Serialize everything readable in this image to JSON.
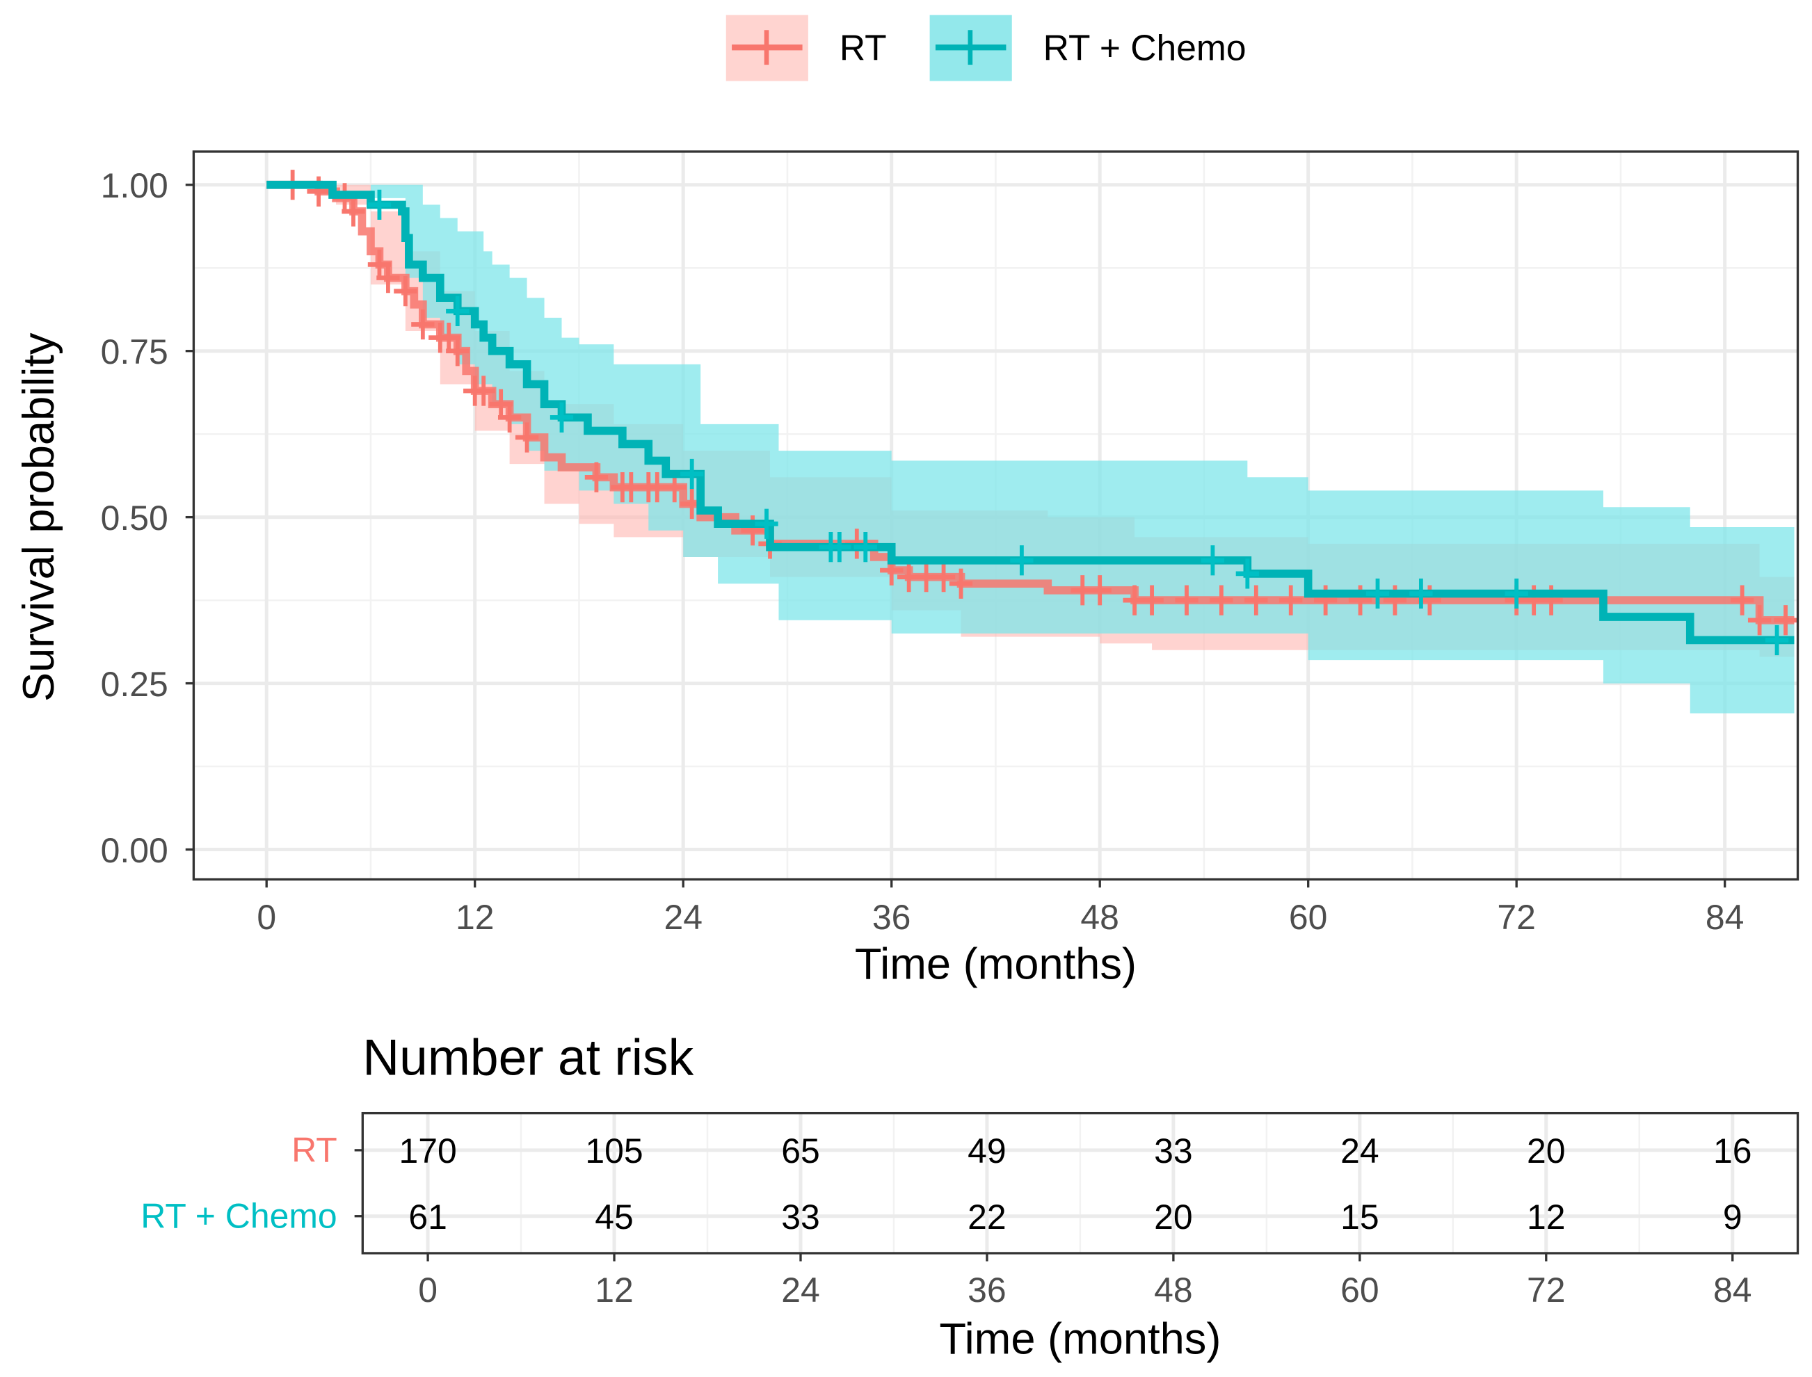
{
  "chart_data": {
    "type": "line",
    "subtype": "kaplan-meier step",
    "xlabel": "Time (months)",
    "ylabel": "Survival probability",
    "xlim": [
      -4.2,
      88.2
    ],
    "ylim": [
      -0.045,
      1.05
    ],
    "xticks": [
      0,
      12,
      24,
      36,
      48,
      60,
      72,
      84
    ],
    "xtick_labels": [
      "0",
      "12",
      "24",
      "36",
      "48",
      "60",
      "72",
      "84"
    ],
    "yticks": [
      0,
      0.25,
      0.5,
      0.75,
      1.0
    ],
    "ytick_labels": [
      "0.00",
      "0.25",
      "0.50",
      "0.75",
      "1.00"
    ],
    "grid": true,
    "legend": {
      "placement": "top",
      "entries": [
        "RT",
        "RT + Chemo"
      ]
    },
    "series": [
      {
        "name": "RT",
        "color": "#F8766D",
        "ci_color": "#FFB6B0",
        "steps": [
          [
            0,
            1.0
          ],
          [
            3,
            0.99
          ],
          [
            4,
            0.98
          ],
          [
            5,
            0.96
          ],
          [
            5.5,
            0.93
          ],
          [
            6,
            0.9
          ],
          [
            6.5,
            0.88
          ],
          [
            7,
            0.86
          ],
          [
            8,
            0.84
          ],
          [
            8.5,
            0.82
          ],
          [
            9,
            0.79
          ],
          [
            10,
            0.77
          ],
          [
            11,
            0.75
          ],
          [
            11.5,
            0.72
          ],
          [
            12,
            0.69
          ],
          [
            13,
            0.67
          ],
          [
            14,
            0.65
          ],
          [
            15,
            0.62
          ],
          [
            16,
            0.59
          ],
          [
            17,
            0.575
          ],
          [
            19,
            0.56
          ],
          [
            20,
            0.545
          ],
          [
            24,
            0.52
          ],
          [
            25,
            0.5
          ],
          [
            27,
            0.48
          ],
          [
            29,
            0.46
          ],
          [
            35,
            0.44
          ],
          [
            36,
            0.42
          ],
          [
            37,
            0.41
          ],
          [
            40,
            0.4
          ],
          [
            45,
            0.39
          ],
          [
            50,
            0.375
          ],
          [
            86,
            0.345
          ]
        ],
        "ci_upper": [
          [
            0,
            1.0
          ],
          [
            4,
            1.0
          ],
          [
            6,
            0.96
          ],
          [
            8,
            0.9
          ],
          [
            10,
            0.84
          ],
          [
            12,
            0.78
          ],
          [
            14,
            0.72
          ],
          [
            16,
            0.67
          ],
          [
            20,
            0.64
          ],
          [
            24,
            0.6
          ],
          [
            29,
            0.56
          ],
          [
            36,
            0.51
          ],
          [
            45,
            0.5
          ],
          [
            50,
            0.47
          ],
          [
            60,
            0.46
          ],
          [
            86,
            0.41
          ]
        ],
        "ci_lower": [
          [
            0,
            1.0
          ],
          [
            4,
            0.97
          ],
          [
            6,
            0.85
          ],
          [
            8,
            0.78
          ],
          [
            10,
            0.7
          ],
          [
            12,
            0.63
          ],
          [
            14,
            0.58
          ],
          [
            16,
            0.52
          ],
          [
            18,
            0.49
          ],
          [
            20,
            0.47
          ],
          [
            24,
            0.44
          ],
          [
            29,
            0.41
          ],
          [
            36,
            0.36
          ],
          [
            40,
            0.32
          ],
          [
            48,
            0.31
          ],
          [
            51,
            0.3
          ],
          [
            86,
            0.29
          ]
        ],
        "censored": [
          1.5,
          3,
          4.5,
          5,
          6.5,
          7,
          8,
          9,
          10,
          10.5,
          11,
          12,
          12.5,
          13.5,
          14,
          15,
          19,
          20.5,
          21,
          22,
          22.5,
          23.5,
          24.5,
          28,
          29,
          34,
          36,
          37,
          38,
          39,
          40,
          47,
          48,
          50,
          51,
          53,
          55,
          57,
          59,
          61,
          63,
          65,
          67,
          72,
          73,
          74,
          85,
          86,
          87.5
        ],
        "end": 88
      },
      {
        "name": "RT + Chemo",
        "color": "#00BFC4",
        "line_color": "#00B3B6",
        "ci_color": "#7FE6E9",
        "steps": [
          [
            0,
            1.0
          ],
          [
            3.8,
            0.985
          ],
          [
            6,
            0.97
          ],
          [
            7.8,
            0.96
          ],
          [
            8,
            0.92
          ],
          [
            8.2,
            0.88
          ],
          [
            9,
            0.86
          ],
          [
            10,
            0.83
          ],
          [
            11,
            0.81
          ],
          [
            12,
            0.79
          ],
          [
            12.5,
            0.77
          ],
          [
            13,
            0.75
          ],
          [
            14,
            0.73
          ],
          [
            15,
            0.7
          ],
          [
            16,
            0.67
          ],
          [
            17,
            0.65
          ],
          [
            18.5,
            0.63
          ],
          [
            20.5,
            0.61
          ],
          [
            22,
            0.585
          ],
          [
            23,
            0.565
          ],
          [
            25,
            0.51
          ],
          [
            26,
            0.49
          ],
          [
            29,
            0.455
          ],
          [
            36,
            0.435
          ],
          [
            56.5,
            0.415
          ],
          [
            60,
            0.385
          ],
          [
            77,
            0.35
          ],
          [
            82,
            0.315
          ]
        ],
        "ci_upper": [
          [
            0,
            1.0
          ],
          [
            8,
            1.0
          ],
          [
            9,
            0.97
          ],
          [
            10,
            0.95
          ],
          [
            11,
            0.93
          ],
          [
            12.5,
            0.9
          ],
          [
            13,
            0.88
          ],
          [
            14,
            0.86
          ],
          [
            15,
            0.83
          ],
          [
            16,
            0.8
          ],
          [
            17,
            0.77
          ],
          [
            18,
            0.76
          ],
          [
            20,
            0.73
          ],
          [
            25,
            0.64
          ],
          [
            29.5,
            0.6
          ],
          [
            36,
            0.585
          ],
          [
            56.5,
            0.56
          ],
          [
            60,
            0.54
          ],
          [
            77,
            0.515
          ],
          [
            82,
            0.485
          ]
        ],
        "ci_lower": [
          [
            0,
            1.0
          ],
          [
            6,
            0.98
          ],
          [
            8,
            0.86
          ],
          [
            9,
            0.8
          ],
          [
            10,
            0.77
          ],
          [
            11,
            0.73
          ],
          [
            12,
            0.7
          ],
          [
            13,
            0.67
          ],
          [
            14,
            0.64
          ],
          [
            15,
            0.6
          ],
          [
            16,
            0.57
          ],
          [
            18,
            0.54
          ],
          [
            20,
            0.52
          ],
          [
            22,
            0.48
          ],
          [
            24,
            0.44
          ],
          [
            26,
            0.4
          ],
          [
            29.5,
            0.345
          ],
          [
            36,
            0.325
          ],
          [
            60,
            0.285
          ],
          [
            77,
            0.25
          ],
          [
            82,
            0.205
          ]
        ],
        "censored": [
          6.5,
          11,
          17,
          24.5,
          28.8,
          32.5,
          33,
          34.5,
          43.5,
          54.5,
          56.5,
          64,
          66.5,
          72,
          87
        ],
        "end": 88
      }
    ],
    "risk_table": {
      "title": "Number at risk",
      "xlabel": "Time (months)",
      "times": [
        0,
        12,
        24,
        36,
        48,
        60,
        72,
        84
      ],
      "time_labels": [
        "0",
        "12",
        "24",
        "36",
        "48",
        "60",
        "72",
        "84"
      ],
      "rows": [
        {
          "label": "RT",
          "color": "#F8766D",
          "counts": [
            "170",
            "105",
            "65",
            "49",
            "33",
            "24",
            "20",
            "16"
          ]
        },
        {
          "label": "RT + Chemo",
          "color": "#00BFC4",
          "counts": [
            "61",
            "45",
            "33",
            "22",
            "20",
            "15",
            "12",
            "9"
          ]
        }
      ]
    }
  }
}
